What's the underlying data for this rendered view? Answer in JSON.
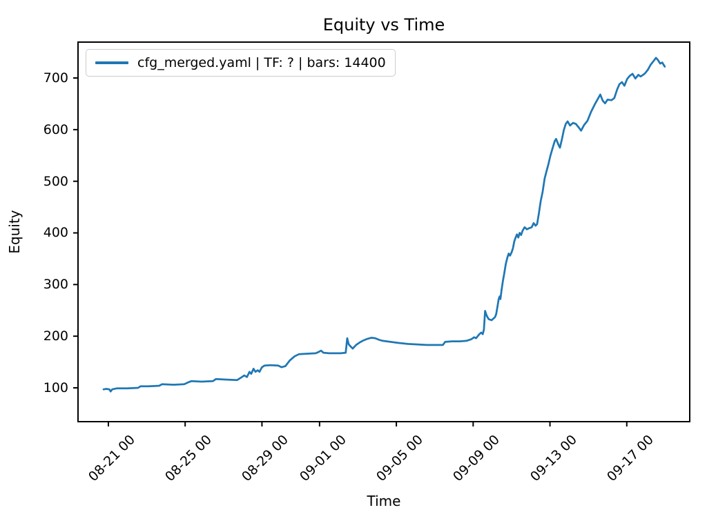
{
  "chart_data": {
    "type": "line",
    "title": "Equity vs Time",
    "xlabel": "Time",
    "ylabel": "Equity",
    "grid": false,
    "background": "#ffffff",
    "axes_color": "#000000",
    "legend": {
      "position": "upper-left",
      "entries": [
        {
          "label": "cfg_merged.yaml | TF: ? | bars: 14400",
          "color": "#1f77b4"
        }
      ]
    },
    "x_unit": "days (0 = 08-20 00:00, read from tick labels)",
    "xlim": [
      -0.58,
      31.28
    ],
    "ylim": [
      34.5,
      769.5
    ],
    "x_ticks": [
      {
        "d": 1,
        "label": "08-21 00"
      },
      {
        "d": 5,
        "label": "08-25 00"
      },
      {
        "d": 9,
        "label": "08-29 00"
      },
      {
        "d": 12,
        "label": "09-01 00"
      },
      {
        "d": 16,
        "label": "09-05 00"
      },
      {
        "d": 20,
        "label": "09-09 00"
      },
      {
        "d": 24,
        "label": "09-13 00"
      },
      {
        "d": 28,
        "label": "09-17 00"
      }
    ],
    "y_ticks": [
      100,
      200,
      300,
      400,
      500,
      600,
      700
    ],
    "series": [
      {
        "name": "cfg_merged.yaml | TF: ? | bars: 14400",
        "color": "#1f77b4",
        "points": [
          [
            0.75,
            97
          ],
          [
            0.9,
            98
          ],
          [
            1.05,
            97
          ],
          [
            1.12,
            93
          ],
          [
            1.2,
            97
          ],
          [
            1.45,
            99
          ],
          [
            2.0,
            99
          ],
          [
            2.55,
            100
          ],
          [
            2.68,
            103
          ],
          [
            3.1,
            103
          ],
          [
            3.65,
            104
          ],
          [
            3.8,
            107
          ],
          [
            4.4,
            106
          ],
          [
            4.95,
            107
          ],
          [
            5.18,
            111
          ],
          [
            5.32,
            113
          ],
          [
            5.85,
            112
          ],
          [
            6.45,
            113
          ],
          [
            6.6,
            117
          ],
          [
            7.1,
            116
          ],
          [
            7.7,
            115
          ],
          [
            7.92,
            120
          ],
          [
            8.08,
            124
          ],
          [
            8.22,
            121
          ],
          [
            8.35,
            131
          ],
          [
            8.44,
            127
          ],
          [
            8.56,
            137
          ],
          [
            8.66,
            131
          ],
          [
            8.78,
            134
          ],
          [
            8.87,
            131
          ],
          [
            9.0,
            140
          ],
          [
            9.13,
            143
          ],
          [
            9.45,
            144
          ],
          [
            9.85,
            143
          ],
          [
            10.02,
            140
          ],
          [
            10.22,
            142
          ],
          [
            10.45,
            153
          ],
          [
            10.7,
            161
          ],
          [
            10.92,
            165
          ],
          [
            11.3,
            166
          ],
          [
            11.8,
            167
          ],
          [
            11.98,
            170
          ],
          [
            12.08,
            172
          ],
          [
            12.2,
            168
          ],
          [
            12.5,
            167
          ],
          [
            13.1,
            167
          ],
          [
            13.36,
            168
          ],
          [
            13.44,
            196
          ],
          [
            13.52,
            184
          ],
          [
            13.62,
            180
          ],
          [
            13.73,
            176
          ],
          [
            13.9,
            183
          ],
          [
            14.1,
            188
          ],
          [
            14.3,
            192
          ],
          [
            14.5,
            195
          ],
          [
            14.7,
            197
          ],
          [
            14.9,
            196
          ],
          [
            15.1,
            193
          ],
          [
            15.3,
            191
          ],
          [
            15.7,
            189
          ],
          [
            16.1,
            187
          ],
          [
            16.6,
            185
          ],
          [
            17.1,
            184
          ],
          [
            17.6,
            183
          ],
          [
            18.1,
            183
          ],
          [
            18.42,
            183
          ],
          [
            18.54,
            189
          ],
          [
            18.9,
            190
          ],
          [
            19.3,
            190
          ],
          [
            19.65,
            191
          ],
          [
            19.9,
            194
          ],
          [
            20.05,
            198
          ],
          [
            20.15,
            196
          ],
          [
            20.3,
            203
          ],
          [
            20.42,
            207
          ],
          [
            20.5,
            204
          ],
          [
            20.56,
            213
          ],
          [
            20.62,
            249
          ],
          [
            20.7,
            240
          ],
          [
            20.81,
            233
          ],
          [
            20.96,
            231
          ],
          [
            21.05,
            234
          ],
          [
            21.14,
            237
          ],
          [
            21.2,
            243
          ],
          [
            21.27,
            258
          ],
          [
            21.33,
            272
          ],
          [
            21.38,
            277
          ],
          [
            21.42,
            272
          ],
          [
            21.48,
            290
          ],
          [
            21.55,
            307
          ],
          [
            21.62,
            322
          ],
          [
            21.7,
            340
          ],
          [
            21.78,
            352
          ],
          [
            21.85,
            360
          ],
          [
            21.92,
            356
          ],
          [
            22.0,
            362
          ],
          [
            22.07,
            370
          ],
          [
            22.14,
            383
          ],
          [
            22.2,
            390
          ],
          [
            22.28,
            397
          ],
          [
            22.35,
            391
          ],
          [
            22.42,
            400
          ],
          [
            22.5,
            396
          ],
          [
            22.57,
            404
          ],
          [
            22.68,
            411
          ],
          [
            22.8,
            407
          ],
          [
            22.9,
            409
          ],
          [
            23.05,
            411
          ],
          [
            23.15,
            419
          ],
          [
            23.25,
            414
          ],
          [
            23.33,
            417
          ],
          [
            23.42,
            437
          ],
          [
            23.52,
            462
          ],
          [
            23.62,
            480
          ],
          [
            23.72,
            505
          ],
          [
            23.82,
            519
          ],
          [
            23.92,
            533
          ],
          [
            24.02,
            549
          ],
          [
            24.12,
            562
          ],
          [
            24.25,
            578
          ],
          [
            24.32,
            582
          ],
          [
            24.45,
            570
          ],
          [
            24.52,
            565
          ],
          [
            24.62,
            581
          ],
          [
            24.72,
            599
          ],
          [
            24.82,
            611
          ],
          [
            24.92,
            616
          ],
          [
            25.05,
            608
          ],
          [
            25.2,
            613
          ],
          [
            25.35,
            611
          ],
          [
            25.5,
            604
          ],
          [
            25.62,
            598
          ],
          [
            25.78,
            609
          ],
          [
            25.95,
            617
          ],
          [
            26.15,
            635
          ],
          [
            26.35,
            650
          ],
          [
            26.5,
            660
          ],
          [
            26.62,
            668
          ],
          [
            26.75,
            656
          ],
          [
            26.87,
            651
          ],
          [
            27.0,
            658
          ],
          [
            27.2,
            657
          ],
          [
            27.35,
            661
          ],
          [
            27.5,
            678
          ],
          [
            27.62,
            688
          ],
          [
            27.75,
            692
          ],
          [
            27.88,
            685
          ],
          [
            28.02,
            698
          ],
          [
            28.15,
            704
          ],
          [
            28.3,
            708
          ],
          [
            28.45,
            699
          ],
          [
            28.6,
            706
          ],
          [
            28.72,
            703
          ],
          [
            28.85,
            706
          ],
          [
            28.95,
            709
          ],
          [
            29.1,
            716
          ],
          [
            29.25,
            726
          ],
          [
            29.4,
            733
          ],
          [
            29.52,
            739
          ],
          [
            29.62,
            735
          ],
          [
            29.74,
            728
          ],
          [
            29.85,
            730
          ],
          [
            29.98,
            722
          ]
        ]
      }
    ]
  }
}
